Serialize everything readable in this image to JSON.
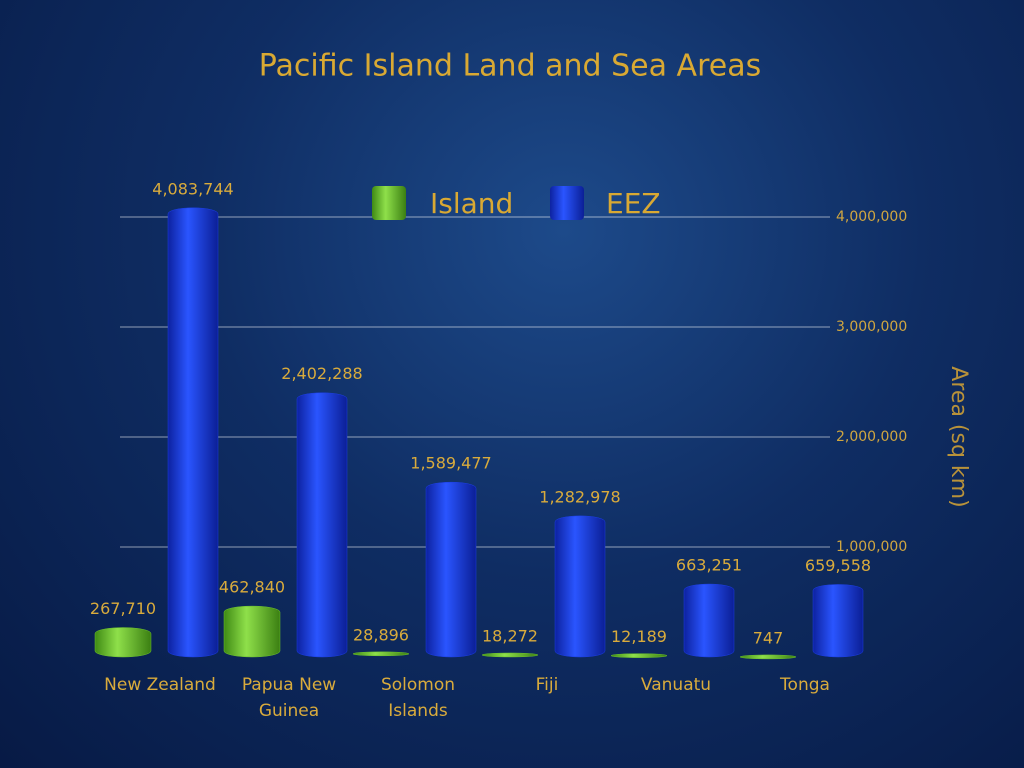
{
  "chart_data": {
    "type": "bar",
    "title": "Pacific Island Land and Sea Areas",
    "y_label": "Area (sq km)",
    "categories": [
      "New Zealand",
      "Papua New Guinea",
      "Solomon Islands",
      "Fiji",
      "Vanuatu",
      "Tonga"
    ],
    "series": [
      {
        "name": "Island",
        "color": "#6cc22e",
        "values": [
          267710,
          462840,
          28896,
          18272,
          12189,
          747
        ],
        "value_labels": [
          "267,710",
          "462,840",
          "28,896",
          "18,272",
          "12,189",
          "747"
        ]
      },
      {
        "name": "EEZ",
        "color": "#1c3fe6",
        "values": [
          4083744,
          2402288,
          1589477,
          1282978,
          663251,
          659558
        ],
        "value_labels": [
          "4,083,744",
          "2,402,288",
          "1,589,477",
          "1,282,978",
          "663,251",
          "659,558"
        ]
      }
    ],
    "ylim": [
      0,
      4500000
    ],
    "yticks": [
      {
        "value": 1000000,
        "label": "1,000,000"
      },
      {
        "value": 2000000,
        "label": "2,000,000"
      },
      {
        "value": 3000000,
        "label": "3,000,000"
      },
      {
        "value": 4000000,
        "label": "4,000,000"
      }
    ],
    "grid": true,
    "legend": "top"
  }
}
